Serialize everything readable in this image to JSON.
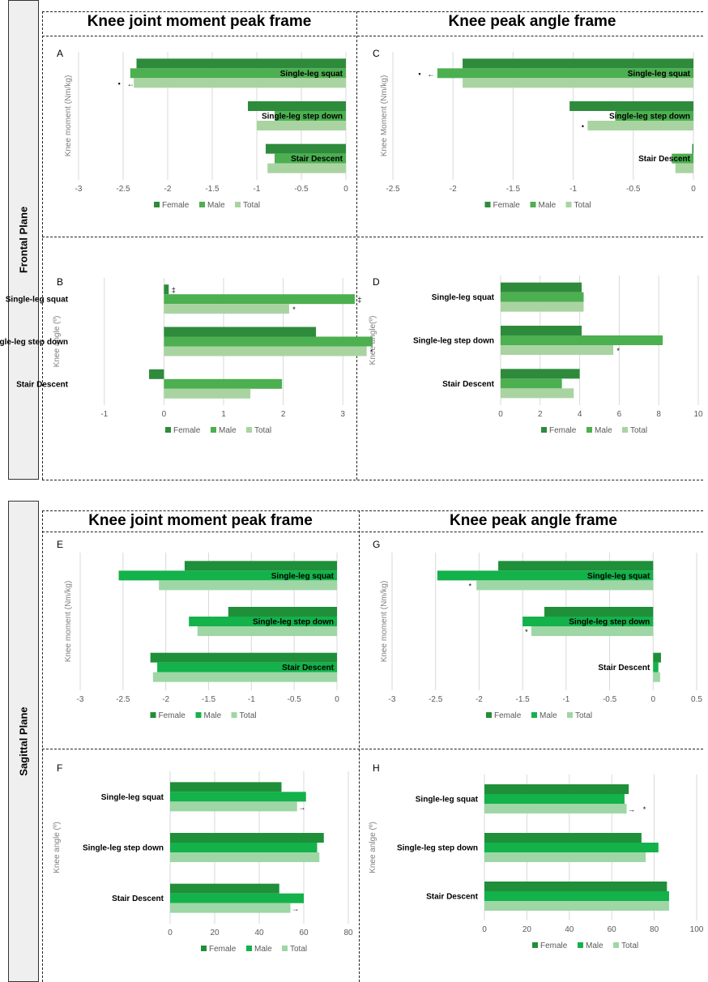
{
  "colors": {
    "female": "#2e8b3c",
    "male": "#4caf50",
    "total": "#a9d4a1"
  },
  "colors_sagittal": {
    "female": "#1f8f3a",
    "male": "#13b24a",
    "total": "#9fd6a6"
  },
  "frontal": {
    "plane_label": "Frontal Plane",
    "title_left": "Knee joint moment peak frame",
    "title_right": "Knee peak angle frame"
  },
  "sagittal": {
    "plane_label": "Sagittal Plane",
    "title_left": "Knee joint moment peak frame",
    "title_right": "Knee peak angle frame"
  },
  "chart_data": [
    {
      "id": "A",
      "panel_label": "A",
      "type": "bar",
      "orientation": "horizontal",
      "ylabel": "Knee moment (Nm/kg)",
      "categories": [
        "Single-leg squat",
        "Single-leg step down",
        "Stair Descent"
      ],
      "category_label_placement": "inside",
      "series": [
        {
          "name": "Female",
          "values": [
            -2.35,
            -1.1,
            -0.9
          ]
        },
        {
          "name": "Male",
          "values": [
            -2.42,
            -0.8,
            -0.8
          ]
        },
        {
          "name": "Total",
          "values": [
            -2.38,
            -1.0,
            -0.88
          ]
        }
      ],
      "xlim": [
        -3,
        0
      ],
      "xticks": [
        "-3",
        "-2.5",
        "-2",
        "-1.5",
        "-1",
        "-0.5",
        "0"
      ],
      "grid": true,
      "legend": "bottom",
      "annotations": [
        {
          "text": "•",
          "category": 0,
          "series": 2,
          "offset": 18
        },
        {
          "text": "←",
          "category": 0,
          "series": 2,
          "offset": 4
        }
      ]
    },
    {
      "id": "B",
      "panel_label": "B",
      "type": "bar",
      "orientation": "horizontal",
      "ylabel": "Knee angle (º)",
      "categories": [
        "Single-leg squat",
        "Single-leg step down",
        "Stair Descent"
      ],
      "category_label_placement": "outside",
      "series": [
        {
          "name": "Female",
          "values": [
            0.08,
            2.55,
            -0.25
          ]
        },
        {
          "name": "Male",
          "values": [
            3.2,
            3.5,
            1.98
          ]
        },
        {
          "name": "Total",
          "values": [
            2.1,
            3.4,
            1.45
          ]
        }
      ],
      "xlim": [
        -1.5,
        3.5
      ],
      "xticks": [
        "-1",
        "0",
        "1",
        "2",
        "3"
      ],
      "grid": true,
      "legend": "bottom",
      "annotations": [
        {
          "text": "‡",
          "category": 0,
          "series": 0,
          "offset": 6
        },
        {
          "text": "‡",
          "category": 0,
          "series": 1,
          "offset": 6
        },
        {
          "text": "*",
          "category": 0,
          "series": 2,
          "offset": 6
        },
        {
          "text": "*",
          "category": 1,
          "series": 2,
          "offset": 6
        }
      ]
    },
    {
      "id": "C",
      "panel_label": "C",
      "type": "bar",
      "orientation": "horizontal",
      "ylabel": "Knee Moment (Nm/kg)",
      "categories": [
        "Single-leg squat",
        "Single-leg step down",
        "Stair Descent"
      ],
      "category_label_placement": "inside",
      "series": [
        {
          "name": "Female",
          "values": [
            -1.92,
            -1.03,
            -0.01
          ]
        },
        {
          "name": "Male",
          "values": [
            -2.13,
            -0.65,
            -0.18
          ]
        },
        {
          "name": "Total",
          "values": [
            -1.92,
            -0.88,
            -0.15
          ]
        }
      ],
      "xlim": [
        -2.5,
        0
      ],
      "xticks": [
        "-2.5",
        "-2",
        "-1.5",
        "-1",
        "-0.5",
        "0"
      ],
      "grid": true,
      "legend": "bottom",
      "annotations": [
        {
          "text": "•",
          "category": 0,
          "series": 1,
          "offset": 22
        },
        {
          "text": "←",
          "category": 0,
          "series": 1,
          "offset": 8
        },
        {
          "text": "•",
          "category": 1,
          "series": 2,
          "offset": 6
        }
      ]
    },
    {
      "id": "D",
      "panel_label": "D",
      "type": "bar",
      "orientation": "horizontal",
      "ylabel": "Knee angle(º)",
      "categories": [
        "Single-leg squat",
        "Single-leg step down",
        "Stair Descent"
      ],
      "category_label_placement": "outside",
      "series": [
        {
          "name": "Female",
          "values": [
            4.1,
            4.1,
            4.0
          ]
        },
        {
          "name": "Male",
          "values": [
            4.2,
            8.2,
            3.1
          ]
        },
        {
          "name": "Total",
          "values": [
            4.2,
            5.7,
            3.7
          ]
        }
      ],
      "xlim": [
        0,
        10
      ],
      "xticks": [
        "0",
        "2",
        "4",
        "6",
        "8",
        "10"
      ],
      "grid": true,
      "legend": "bottom",
      "annotations": [
        {
          "text": "*",
          "category": 1,
          "series": 2,
          "offset": 6
        }
      ]
    },
    {
      "id": "E",
      "panel_label": "E",
      "type": "bar",
      "orientation": "horizontal",
      "ylabel": "Knee moment (Nm/kg)",
      "categories": [
        "Single-leg squat",
        "Single-leg step down",
        "Stair Descent"
      ],
      "category_label_placement": "inside",
      "series": [
        {
          "name": "Female",
          "values": [
            -1.78,
            -1.27,
            -2.18
          ]
        },
        {
          "name": "Male",
          "values": [
            -2.55,
            -1.73,
            -2.1
          ]
        },
        {
          "name": "Total",
          "values": [
            -2.08,
            -1.63,
            -2.15
          ]
        }
      ],
      "xlim": [
        -3,
        0
      ],
      "xticks": [
        "-3",
        "-2.5",
        "-2",
        "-1.5",
        "-1",
        "-0.5",
        "0"
      ],
      "grid": true,
      "legend": "bottom",
      "annotations": []
    },
    {
      "id": "F",
      "panel_label": "F",
      "type": "bar",
      "orientation": "horizontal",
      "ylabel": "Knee angle (º)",
      "categories": [
        "Single-leg squat",
        "Single-leg step down",
        "Stair Descent"
      ],
      "category_label_placement": "outside",
      "series": [
        {
          "name": "Female",
          "values": [
            50,
            69,
            49
          ]
        },
        {
          "name": "Male",
          "values": [
            61,
            66,
            60
          ]
        },
        {
          "name": "Total",
          "values": [
            57,
            67,
            54
          ]
        }
      ],
      "xlim": [
        0,
        80
      ],
      "xticks": [
        "0",
        "20",
        "40",
        "60",
        "80"
      ],
      "grid": true,
      "legend": "bottom",
      "annotations": [
        {
          "text": "→",
          "category": 0,
          "series": 2,
          "offset": 6
        },
        {
          "text": "→",
          "category": 2,
          "series": 2,
          "offset": 6
        }
      ]
    },
    {
      "id": "G",
      "panel_label": "G",
      "type": "bar",
      "orientation": "horizontal",
      "ylabel": "Knee moment (Nm/kg)",
      "categories": [
        "Single-leg squat",
        "Single-leg step down",
        "Stair Descent"
      ],
      "category_label_placement": "inside",
      "series": [
        {
          "name": "Female",
          "values": [
            -1.78,
            -1.25,
            0.09
          ]
        },
        {
          "name": "Male",
          "values": [
            -2.48,
            -1.5,
            0.06
          ]
        },
        {
          "name": "Total",
          "values": [
            -2.03,
            -1.4,
            0.08
          ]
        }
      ],
      "xlim": [
        -3,
        0.5
      ],
      "xticks": [
        "-3",
        "-2.5",
        "-2",
        "-1.5",
        "-1",
        "-0.5",
        "0",
        "0.5"
      ],
      "grid": true,
      "legend": "bottom",
      "annotations": [
        {
          "text": "*",
          "category": 0,
          "series": 2,
          "offset": 8
        },
        {
          "text": "*",
          "category": 1,
          "series": 2,
          "offset": 6
        }
      ]
    },
    {
      "id": "H",
      "panel_label": "H",
      "type": "bar",
      "orientation": "horizontal",
      "ylabel": "Knee anlge (º)",
      "categories": [
        "Single-leg squat",
        "Single-leg step down",
        "Stair Descent"
      ],
      "category_label_placement": "outside",
      "series": [
        {
          "name": "Female",
          "values": [
            68,
            74,
            86
          ]
        },
        {
          "name": "Male",
          "values": [
            66,
            82,
            87
          ]
        },
        {
          "name": "Total",
          "values": [
            67,
            76,
            87
          ]
        }
      ],
      "xlim": [
        0,
        100
      ],
      "xticks": [
        "0",
        "20",
        "40",
        "60",
        "80",
        "100"
      ],
      "grid": true,
      "legend": "bottom",
      "annotations": [
        {
          "text": "→",
          "category": 0,
          "series": 2,
          "offset": 6
        },
        {
          "text": "*",
          "category": 0,
          "series": 2,
          "offset": 22
        }
      ]
    }
  ]
}
